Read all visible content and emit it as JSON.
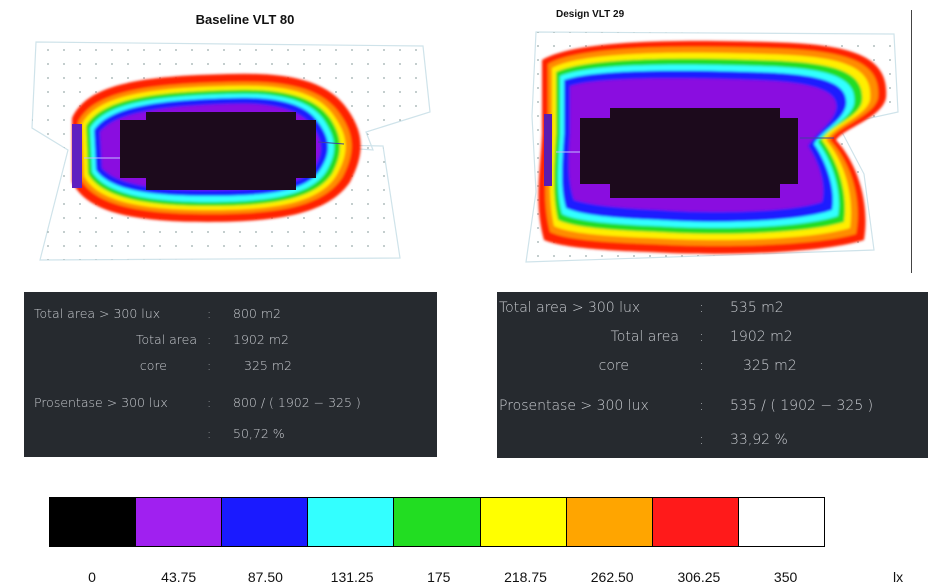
{
  "left_panel": {
    "title": "Baseline VLT 80",
    "calc": {
      "rows": [
        {
          "label": "Total area > 300 lux",
          "sep": ":",
          "value": "800 m2"
        },
        {
          "label": "Total area",
          "sep": ":",
          "value": "1902 m2"
        },
        {
          "label": "core",
          "sep": ":",
          "value": "325 m2"
        },
        {
          "label": "Prosentase > 300 lux",
          "sep": ":",
          "value": "800 / ( 1902 − 325 )"
        },
        {
          "label": "",
          "sep": ":",
          "value": "50,72 %"
        }
      ]
    }
  },
  "right_panel": {
    "title": "Design VLT 29",
    "calc": {
      "rows": [
        {
          "label": "Total area > 300 lux",
          "sep": ":",
          "value": "535 m2"
        },
        {
          "label": "Total area",
          "sep": ":",
          "value": "1902 m2"
        },
        {
          "label": "core",
          "sep": ":",
          "value": "325 m2"
        },
        {
          "label": "Prosentase > 300 lux",
          "sep": ":",
          "value": "535 / ( 1902 − 325 )"
        },
        {
          "label": "",
          "sep": ":",
          "value": "33,92 %"
        }
      ]
    }
  },
  "legend": {
    "unit": "lx",
    "colors": [
      "#000000",
      "#a020f0",
      "#1a1aff",
      "#33ffff",
      "#22dd22",
      "#ffff00",
      "#ffa500",
      "#ff1a1a",
      "#ffffff"
    ],
    "ticks": [
      "0",
      "43.75",
      "87.50",
      "131.25",
      "175",
      "218.75",
      "262.50",
      "306.25",
      "350"
    ]
  }
}
